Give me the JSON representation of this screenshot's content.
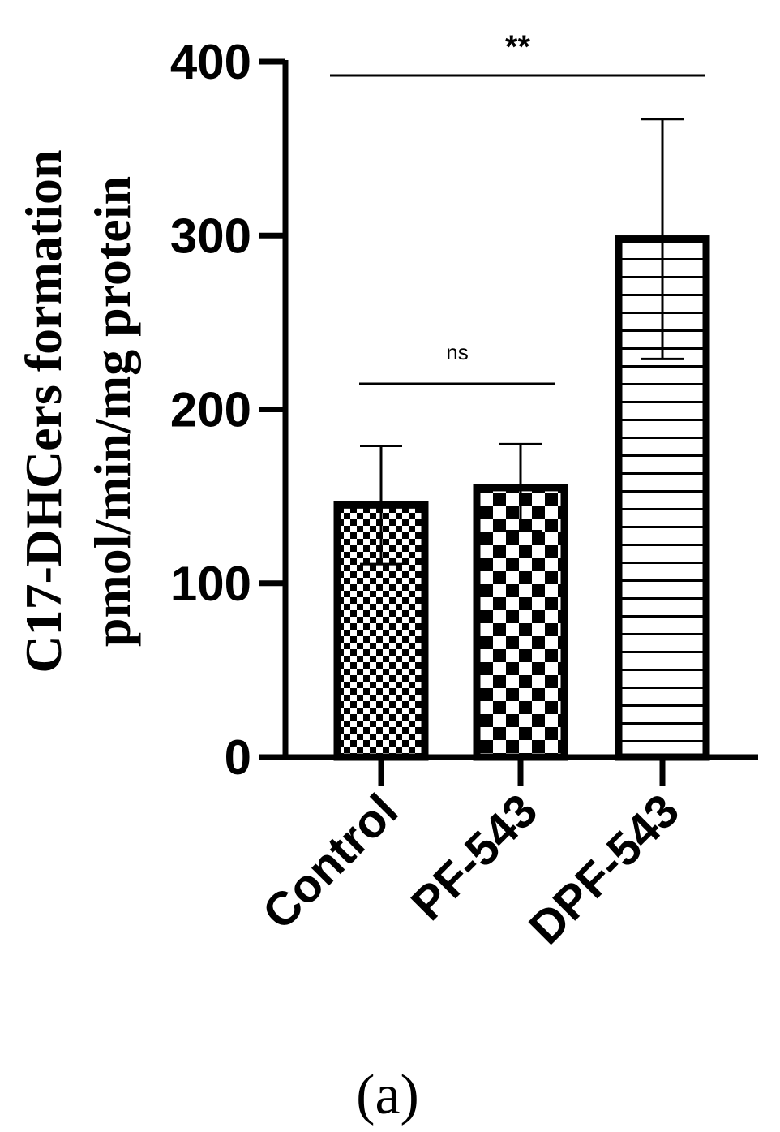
{
  "chart_data": {
    "type": "bar",
    "categories": [
      "Control",
      "PF-543",
      "DPF-543"
    ],
    "values": [
      145,
      155,
      298
    ],
    "errors": [
      34,
      25,
      69
    ],
    "ylabel_lines": [
      "C17-DHCers formation",
      "pmol/min/mg protein"
    ],
    "ylim": [
      0,
      400
    ],
    "yticks": [
      0,
      100,
      200,
      300,
      400
    ],
    "ytick_labels": [
      "0",
      "100",
      "200",
      "300",
      "400"
    ],
    "patterns": [
      "fine-checker",
      "checker",
      "horizontal-lines"
    ],
    "significance": [
      {
        "from": 1,
        "to": 2,
        "label": "ns"
      },
      {
        "from": 0,
        "to": 2,
        "label": "**"
      }
    ],
    "panel_label": "(a)",
    "grid": false
  }
}
